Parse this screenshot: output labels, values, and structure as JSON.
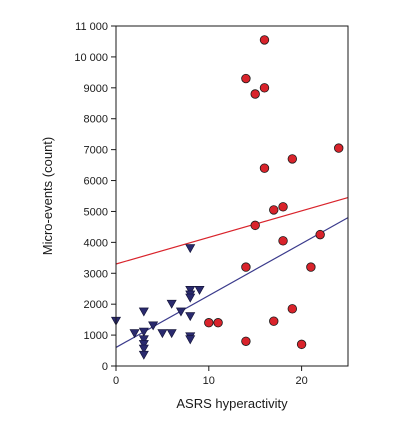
{
  "chart_data": {
    "type": "scatter",
    "title": "",
    "xlabel": "ASRS hyperactivity",
    "ylabel": "Micro-events (count)",
    "xlim": [
      0,
      25
    ],
    "ylim": [
      0,
      11000
    ],
    "xticks": [
      0,
      10,
      20
    ],
    "xtick_labels": [
      "0",
      "10",
      "20"
    ],
    "yticks": [
      0,
      1000,
      2000,
      3000,
      4000,
      5000,
      6000,
      7000,
      8000,
      9000,
      10000,
      11000
    ],
    "ytick_labels": [
      "0",
      "1000",
      "2000",
      "3000",
      "4000",
      "5000",
      "6000",
      "7000",
      "8000",
      "9000",
      "10 000",
      "11 000"
    ],
    "grid": false,
    "legend": false,
    "series": [
      {
        "marker": "triangle-down",
        "color": "#2a2a6e",
        "points": [
          [
            0,
            1450
          ],
          [
            2,
            1050
          ],
          [
            3,
            1750
          ],
          [
            3,
            1100
          ],
          [
            3,
            850
          ],
          [
            3,
            700
          ],
          [
            3,
            550
          ],
          [
            3,
            350
          ],
          [
            4,
            1300
          ],
          [
            5,
            1050
          ],
          [
            6,
            2000
          ],
          [
            6,
            1050
          ],
          [
            7,
            1750
          ],
          [
            8,
            3800
          ],
          [
            8,
            2450
          ],
          [
            8,
            2300
          ],
          [
            8,
            2200
          ],
          [
            8,
            1600
          ],
          [
            8,
            950
          ],
          [
            8,
            850
          ],
          [
            9,
            2450
          ]
        ],
        "fit": [
          [
            0,
            600
          ],
          [
            25,
            4800
          ]
        ],
        "fit_color": "#3b3b8c"
      },
      {
        "marker": "circle",
        "color": "#d9232b",
        "points": [
          [
            10,
            1400
          ],
          [
            11,
            1400
          ],
          [
            14,
            9300
          ],
          [
            14,
            3200
          ],
          [
            14,
            800
          ],
          [
            15,
            8800
          ],
          [
            15,
            4550
          ],
          [
            16,
            10550
          ],
          [
            16,
            9000
          ],
          [
            16,
            6400
          ],
          [
            17,
            5050
          ],
          [
            17,
            1450
          ],
          [
            18,
            5150
          ],
          [
            18,
            4050
          ],
          [
            19,
            6700
          ],
          [
            19,
            1850
          ],
          [
            20,
            700
          ],
          [
            21,
            3200
          ],
          [
            22,
            4250
          ],
          [
            24,
            7050
          ]
        ],
        "fit": [
          [
            0,
            3300
          ],
          [
            25,
            5450
          ]
        ],
        "fit_color": "#d9232b"
      }
    ]
  }
}
